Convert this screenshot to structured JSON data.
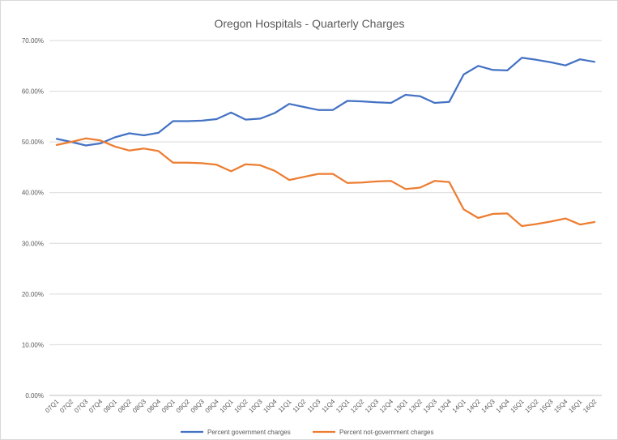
{
  "chart_data": {
    "type": "line",
    "title": "Oregon Hospitals - Quarterly Charges",
    "xlabel": "",
    "ylabel": "",
    "ylim": [
      0,
      70
    ],
    "y_ticks": [
      "0.00%",
      "10.00%",
      "20.00%",
      "30.00%",
      "40.00%",
      "50.00%",
      "60.00%",
      "70.00%"
    ],
    "grid": true,
    "legend_position": "bottom",
    "categories": [
      "07Q1",
      "07Q2",
      "07Q3",
      "07Q4",
      "08Q1",
      "08Q2",
      "08Q3",
      "08Q4",
      "09Q1",
      "09Q2",
      "09Q3",
      "09Q4",
      "10Q1",
      "10Q2",
      "10Q3",
      "10Q4",
      "11Q1",
      "11Q2",
      "11Q3",
      "11Q4",
      "12Q1",
      "12Q2",
      "12Q3",
      "12Q4",
      "13Q1",
      "13Q2",
      "13Q3",
      "13Q4",
      "14Q1",
      "14Q2",
      "14Q3",
      "14Q4",
      "15Q1",
      "15Q2",
      "15Q3",
      "15Q4",
      "16Q1",
      "16Q2"
    ],
    "series": [
      {
        "name": "Percent government charges",
        "color": "#4472c4",
        "values": [
          50.6,
          50.0,
          49.3,
          49.7,
          50.9,
          51.7,
          51.3,
          51.8,
          54.1,
          54.1,
          54.2,
          54.5,
          55.8,
          54.4,
          54.6,
          55.7,
          57.5,
          56.9,
          56.3,
          56.3,
          58.1,
          58.0,
          57.8,
          57.7,
          59.3,
          59.0,
          57.7,
          57.9,
          63.3,
          65.0,
          64.2,
          64.1,
          66.6,
          66.2,
          65.7,
          65.1,
          66.3,
          65.8
        ]
      },
      {
        "name": "Percent not-government charges",
        "color": "#ed7d31",
        "values": [
          49.4,
          50.0,
          50.7,
          50.3,
          49.1,
          48.3,
          48.7,
          48.2,
          45.9,
          45.9,
          45.8,
          45.5,
          44.2,
          45.6,
          45.4,
          44.3,
          42.5,
          43.1,
          43.7,
          43.7,
          41.9,
          42.0,
          42.2,
          42.3,
          40.7,
          41.0,
          42.3,
          42.1,
          36.7,
          35.0,
          35.8,
          35.9,
          33.4,
          33.8,
          34.3,
          34.9,
          33.7,
          34.2
        ]
      }
    ]
  }
}
